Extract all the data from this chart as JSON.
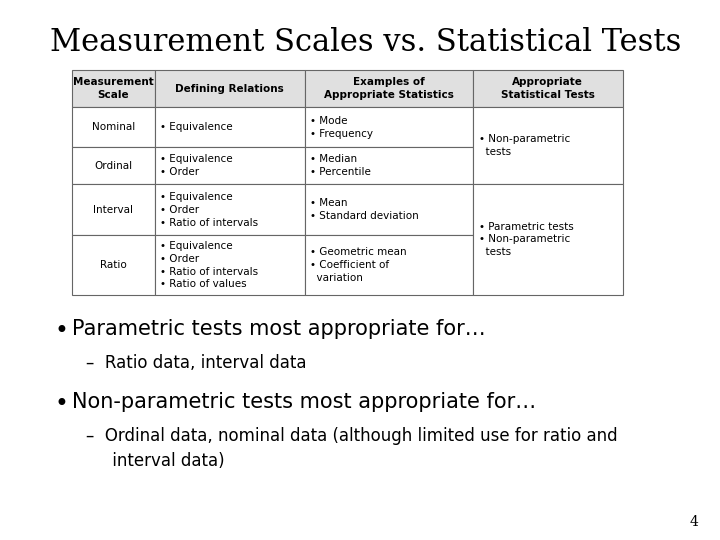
{
  "title": "Measurement Scales vs. Statistical Tests",
  "background_color": "#ffffff",
  "title_fontsize": 22,
  "table": {
    "col_headers": [
      "Measurement\nScale",
      "Defining Relations",
      "Examples of\nAppropriate Statistics",
      "Appropriate\nStatistical Tests"
    ],
    "rows": [
      {
        "scale": "Nominal",
        "defining": "• Equivalence",
        "examples": "• Mode\n• Frequency",
        "tests": "• Non-parametric\n  tests"
      },
      {
        "scale": "Ordinal",
        "defining": "• Equivalence\n• Order",
        "examples": "• Median\n• Percentile",
        "tests": ""
      },
      {
        "scale": "Interval",
        "defining": "• Equivalence\n• Order\n• Ratio of intervals",
        "examples": "• Mean\n• Standard deviation",
        "tests": "• Parametric tests\n• Non-parametric\n  tests"
      },
      {
        "scale": "Ratio",
        "defining": "• Equivalence\n• Order\n• Ratio of intervals\n• Ratio of values",
        "examples": "• Geometric mean\n• Coefficient of\n  variation",
        "tests": ""
      }
    ]
  },
  "bullet1_main": "Parametric tests most appropriate for…",
  "bullet1_sub": "–  Ratio data, interval data",
  "bullet2_main": "Non-parametric tests most appropriate for…",
  "bullet2_sub": "–  Ordinal data, nominal data (although limited use for ratio and\n     interval data)",
  "page_number": "4",
  "header_bg": "#e0e0e0",
  "cell_bg": "#ffffff",
  "border_color": "#666666",
  "text_color": "#000000",
  "header_fontsize": 7.5,
  "cell_fontsize": 7.5,
  "bullet_main_fontsize": 15,
  "bullet_sub_fontsize": 12
}
